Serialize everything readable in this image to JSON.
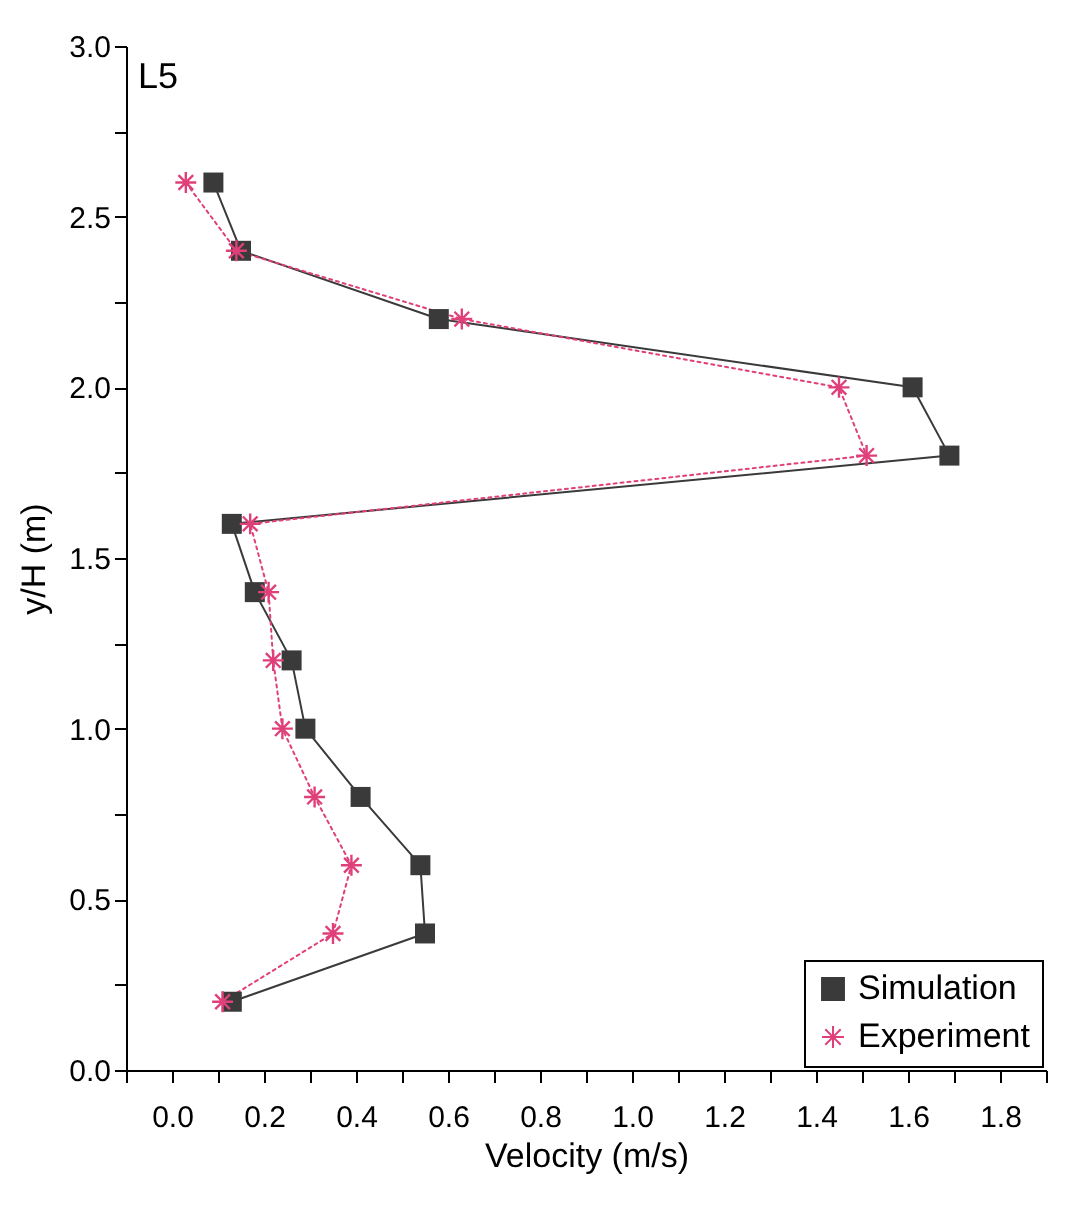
{
  "chart_data": {
    "type": "line",
    "xlabel": "Velocity (m/s)",
    "ylabel": "y/H (m)",
    "annotations": [
      "L5"
    ],
    "xlim": [
      -0.1,
      1.9
    ],
    "xticks": [
      {
        "value": -0.1,
        "label": null
      },
      {
        "value": 0,
        "label": "0.0"
      },
      {
        "value": 0.1,
        "label": null
      },
      {
        "value": 0.2,
        "label": "0.2"
      },
      {
        "value": 0.3,
        "label": null
      },
      {
        "value": 0.4,
        "label": "0.4"
      },
      {
        "value": 0.5,
        "label": null
      },
      {
        "value": 0.6,
        "label": "0.6"
      },
      {
        "value": 0.7,
        "label": null
      },
      {
        "value": 0.8,
        "label": "0.8"
      },
      {
        "value": 0.9,
        "label": null
      },
      {
        "value": 1,
        "label": "1.0"
      },
      {
        "value": 1.1,
        "label": null
      },
      {
        "value": 1.2,
        "label": "1.2"
      },
      {
        "value": 1.3,
        "label": null
      },
      {
        "value": 1.4,
        "label": "1.4"
      },
      {
        "value": 1.5,
        "label": null
      },
      {
        "value": 1.6,
        "label": "1.6"
      },
      {
        "value": 1.7,
        "label": null
      },
      {
        "value": 1.8,
        "label": "1.8"
      },
      {
        "value": 1.9,
        "label": null
      }
    ],
    "ylim": [
      0,
      3
    ],
    "yticks": [
      {
        "value": 0,
        "label": "0.0"
      },
      {
        "value": 0.25,
        "label": null
      },
      {
        "value": 0.5,
        "label": "0.5"
      },
      {
        "value": 0.75,
        "label": null
      },
      {
        "value": 1,
        "label": "1.0"
      },
      {
        "value": 1.25,
        "label": null
      },
      {
        "value": 1.5,
        "label": "1.5"
      },
      {
        "value": 1.75,
        "label": null
      },
      {
        "value": 2,
        "label": "2.0"
      },
      {
        "value": 2.25,
        "label": null
      },
      {
        "value": 2.5,
        "label": "2.5"
      },
      {
        "value": 2.75,
        "label": null
      },
      {
        "value": 3,
        "label": "3.0"
      }
    ],
    "legend": "bottom right",
    "grid": false,
    "series": [
      {
        "name": "Simulation",
        "color": "#3a3a3a",
        "marker": "square",
        "line_style": "solid",
        "x": [
          0.09,
          0.15,
          0.58,
          1.61,
          1.69,
          0.13,
          0.18,
          0.26,
          0.29,
          0.41,
          0.54,
          0.55,
          0.13
        ],
        "values": [
          2.6,
          2.4,
          2.2,
          2.0,
          1.8,
          1.6,
          1.4,
          1.2,
          1.0,
          0.8,
          0.6,
          0.4,
          0.2
        ]
      },
      {
        "name": "Experiment",
        "color": "#e0407a",
        "marker": "cross",
        "line_style": "dotted",
        "x": [
          0.03,
          0.14,
          0.63,
          1.45,
          1.51,
          0.17,
          0.21,
          0.22,
          0.24,
          0.31,
          0.39,
          0.35,
          0.11
        ],
        "values": [
          2.6,
          2.4,
          2.2,
          2.0,
          1.8,
          1.6,
          1.4,
          1.2,
          1.0,
          0.8,
          0.6,
          0.4,
          0.2
        ]
      }
    ]
  }
}
